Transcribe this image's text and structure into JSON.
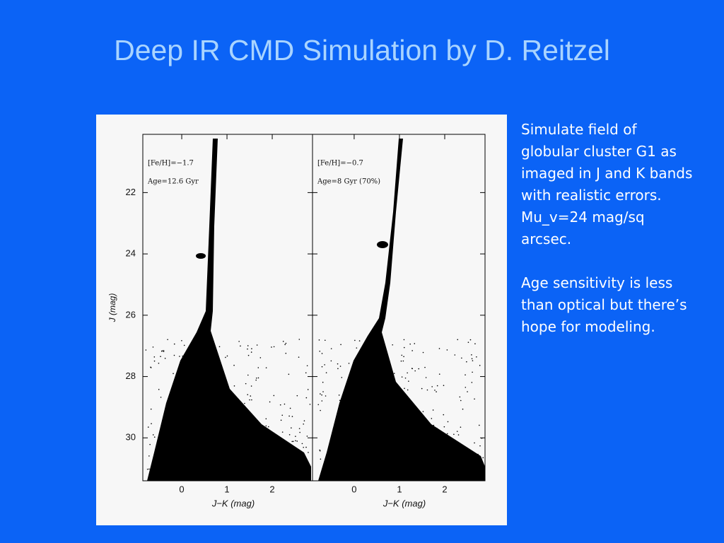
{
  "title": "Deep IR CMD Simulation by D. Reitzel",
  "figure": {
    "y_label": "J (mag)",
    "ylim": [
      20.1,
      31.4
    ],
    "y_ticks": [
      22,
      24,
      26,
      28,
      30
    ],
    "panels": [
      {
        "notes": [
          "[Fe/H]=−1.7",
          "Age=12.6 Gyr"
        ],
        "x_label": "J−K (mag)",
        "xlim": [
          -0.86,
          2.89
        ],
        "x_ticks": [
          0,
          1,
          2
        ]
      },
      {
        "notes": [
          "[Fe/H]=−0.7",
          "Age=8 Gyr (70%)"
        ],
        "x_label": "J−K (mag)",
        "xlim": [
          -0.92,
          2.89
        ],
        "x_ticks": [
          0,
          1,
          2
        ]
      }
    ]
  },
  "text": {
    "paragraphs": [
      "Simulate field of globular cluster G1 as imaged in J and K bands with realistic errors.",
      "Mu_v=24 mag/sq arcsec.",
      "Age sensitivity is less than optical but there’s hope for modeling."
    ]
  }
}
